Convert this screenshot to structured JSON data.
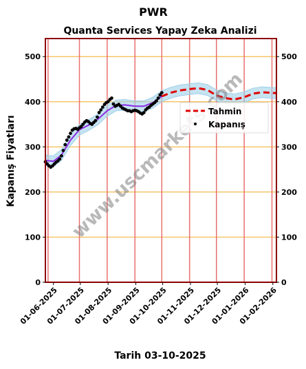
{
  "chart_data": {
    "type": "line",
    "suptitle": "PWR",
    "title": "Quanta Services Yapay Zeka Analizi",
    "xlabel": "Tarih 03-10-2025",
    "ylabel": "Kapanış Fiyatları",
    "ylim": [
      0,
      540
    ],
    "yticks": [
      0,
      100,
      200,
      300,
      400,
      500
    ],
    "x_range": [
      "2025-05-23",
      "2026-02-05"
    ],
    "xticks": [
      "01-06-2025",
      "01-07-2025",
      "01-08-2025",
      "01-09-2025",
      "01-10-2025",
      "01-11-2025",
      "01-12-2025",
      "01-01-2026",
      "01-02-2026"
    ],
    "legend": {
      "placement": "right",
      "entries": [
        "Tahmin",
        "Kapanış"
      ]
    },
    "grid": {
      "horizontal": true,
      "horizontal_color": "#f5c56a",
      "vertical_color": "#e87070"
    },
    "vertical_lines": [
      "2025-05-26",
      "2025-06-30",
      "2025-07-31",
      "2025-08-31",
      "2025-09-30",
      "2025-10-31",
      "2025-11-30",
      "2025-12-31",
      "2026-01-31"
    ],
    "watermark": "www.uscmarkets.com",
    "colors": {
      "frame": "#8b0000",
      "forecast": "#e00000",
      "close": "#000000",
      "fit": "#8a2be2",
      "band": "#9fd0e8"
    },
    "series": [
      {
        "name": "Kapanış",
        "style": "scatter",
        "points": [
          [
            "2025-05-23",
            267
          ],
          [
            "2025-05-25",
            262
          ],
          [
            "2025-05-27",
            258
          ],
          [
            "2025-05-29",
            255
          ],
          [
            "2025-05-31",
            258
          ],
          [
            "2025-06-02",
            262
          ],
          [
            "2025-06-04",
            266
          ],
          [
            "2025-06-06",
            269
          ],
          [
            "2025-06-08",
            273
          ],
          [
            "2025-06-10",
            280
          ],
          [
            "2025-06-12",
            292
          ],
          [
            "2025-06-14",
            305
          ],
          [
            "2025-06-16",
            315
          ],
          [
            "2025-06-18",
            322
          ],
          [
            "2025-06-20",
            330
          ],
          [
            "2025-06-22",
            337
          ],
          [
            "2025-06-24",
            340
          ],
          [
            "2025-06-26",
            341
          ],
          [
            "2025-06-28",
            339
          ],
          [
            "2025-06-30",
            342
          ],
          [
            "2025-07-02",
            345
          ],
          [
            "2025-07-04",
            350
          ],
          [
            "2025-07-06",
            355
          ],
          [
            "2025-07-08",
            358
          ],
          [
            "2025-07-10",
            356
          ],
          [
            "2025-07-12",
            352
          ],
          [
            "2025-07-14",
            350
          ],
          [
            "2025-07-16",
            354
          ],
          [
            "2025-07-18",
            358
          ],
          [
            "2025-07-20",
            366
          ],
          [
            "2025-07-22",
            376
          ],
          [
            "2025-07-24",
            382
          ],
          [
            "2025-07-26",
            388
          ],
          [
            "2025-07-28",
            394
          ],
          [
            "2025-07-30",
            398
          ],
          [
            "2025-08-01",
            400
          ],
          [
            "2025-08-03",
            405
          ],
          [
            "2025-08-05",
            408
          ],
          [
            "2025-08-07",
            395
          ],
          [
            "2025-08-09",
            390
          ],
          [
            "2025-08-11",
            392
          ],
          [
            "2025-08-13",
            394
          ],
          [
            "2025-08-15",
            390
          ],
          [
            "2025-08-17",
            386
          ],
          [
            "2025-08-19",
            384
          ],
          [
            "2025-08-21",
            382
          ],
          [
            "2025-08-23",
            380
          ],
          [
            "2025-08-25",
            380
          ],
          [
            "2025-08-27",
            378
          ],
          [
            "2025-08-29",
            380
          ],
          [
            "2025-08-31",
            381
          ],
          [
            "2025-09-02",
            380
          ],
          [
            "2025-09-04",
            378
          ],
          [
            "2025-09-06",
            375
          ],
          [
            "2025-09-08",
            373
          ],
          [
            "2025-09-10",
            376
          ],
          [
            "2025-09-12",
            382
          ],
          [
            "2025-09-14",
            386
          ],
          [
            "2025-09-16",
            388
          ],
          [
            "2025-09-18",
            392
          ],
          [
            "2025-09-20",
            395
          ],
          [
            "2025-09-22",
            398
          ],
          [
            "2025-09-24",
            402
          ],
          [
            "2025-09-26",
            408
          ],
          [
            "2025-09-28",
            415
          ],
          [
            "2025-09-30",
            420
          ]
        ]
      },
      {
        "name": "Fit",
        "style": "line",
        "points": [
          [
            "2025-05-23",
            270
          ],
          [
            "2025-06-01",
            268
          ],
          [
            "2025-06-10",
            282
          ],
          [
            "2025-06-20",
            315
          ],
          [
            "2025-06-30",
            338
          ],
          [
            "2025-07-10",
            348
          ],
          [
            "2025-07-20",
            360
          ],
          [
            "2025-07-31",
            380
          ],
          [
            "2025-08-10",
            392
          ],
          [
            "2025-08-20",
            393
          ],
          [
            "2025-08-31",
            390
          ],
          [
            "2025-09-10",
            390
          ],
          [
            "2025-09-20",
            398
          ],
          [
            "2025-09-30",
            412
          ]
        ]
      },
      {
        "name": "Tahmin",
        "style": "dashed",
        "points": [
          [
            "2025-09-30",
            412
          ],
          [
            "2025-10-10",
            420
          ],
          [
            "2025-10-20",
            425
          ],
          [
            "2025-10-31",
            428
          ],
          [
            "2025-11-10",
            430
          ],
          [
            "2025-11-20",
            426
          ],
          [
            "2025-11-30",
            414
          ],
          [
            "2025-12-10",
            408
          ],
          [
            "2025-12-20",
            405
          ],
          [
            "2025-12-31",
            410
          ],
          [
            "2026-01-10",
            418
          ],
          [
            "2026-01-20",
            421
          ],
          [
            "2026-02-05",
            419
          ]
        ]
      }
    ],
    "band": {
      "upper_offset": 12,
      "lower_offset": 12
    }
  }
}
